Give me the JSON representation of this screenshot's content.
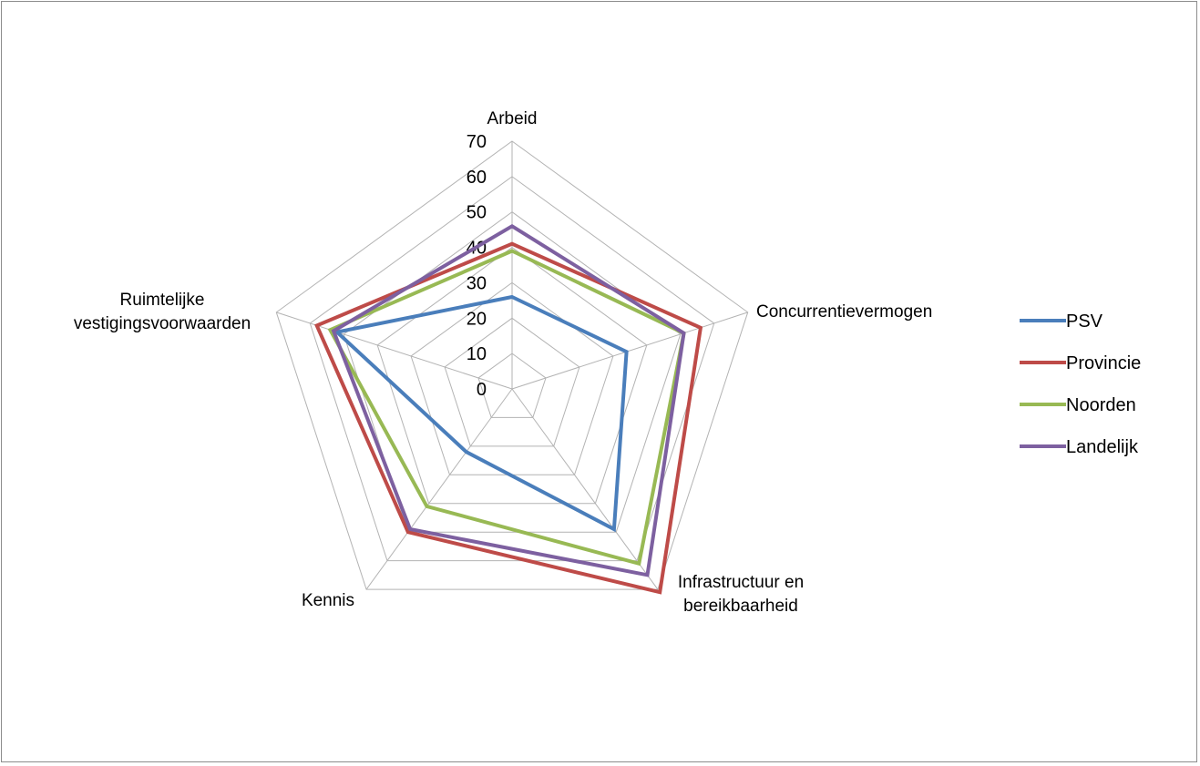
{
  "chart_data": {
    "type": "radar",
    "axes": [
      "Arbeid",
      "Concurrentievermogen",
      "Infrastructuur en bereikbaarheid",
      "Kennis",
      "Ruimtelijke vestigingsvoorwaarden"
    ],
    "axis_label_lines": [
      [
        "Arbeid"
      ],
      [
        "Concurrentievermogen"
      ],
      [
        "Infrastructuur en",
        "bereikbaarheid"
      ],
      [
        "Kennis"
      ],
      [
        "Ruimtelijke",
        "vestigingsvoorwaarden"
      ]
    ],
    "r_ticks": [
      0,
      10,
      20,
      30,
      40,
      50,
      60,
      70
    ],
    "r_range": [
      0,
      70
    ],
    "grid": true,
    "legend_position": "right",
    "series": [
      {
        "name": "PSV",
        "color": "#4a7ebb",
        "values": [
          26,
          34,
          49,
          22,
          52
        ]
      },
      {
        "name": "Provincie",
        "color": "#be4b48",
        "values": [
          41,
          56,
          71,
          50,
          58
        ]
      },
      {
        "name": "Noorden",
        "color": "#98b954",
        "values": [
          39,
          51,
          61,
          41,
          54
        ]
      },
      {
        "name": "Landelijk",
        "color": "#7d60a0",
        "values": [
          46,
          51,
          65,
          49,
          53
        ]
      }
    ]
  }
}
